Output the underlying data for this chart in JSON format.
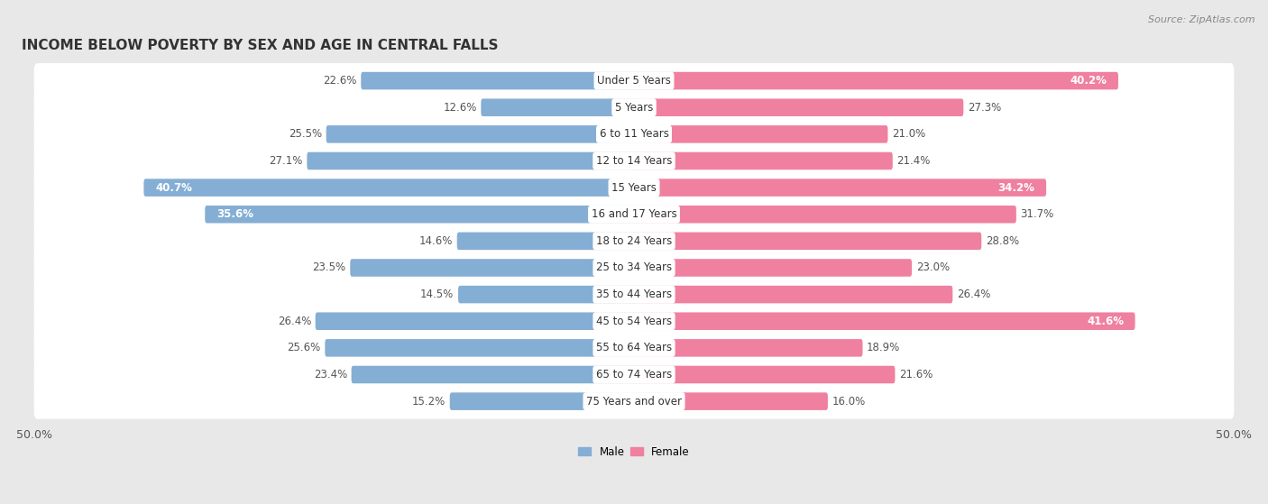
{
  "title": "INCOME BELOW POVERTY BY SEX AND AGE IN CENTRAL FALLS",
  "source": "Source: ZipAtlas.com",
  "categories": [
    "Under 5 Years",
    "5 Years",
    "6 to 11 Years",
    "12 to 14 Years",
    "15 Years",
    "16 and 17 Years",
    "18 to 24 Years",
    "25 to 34 Years",
    "35 to 44 Years",
    "45 to 54 Years",
    "55 to 64 Years",
    "65 to 74 Years",
    "75 Years and over"
  ],
  "male": [
    22.6,
    12.6,
    25.5,
    27.1,
    40.7,
    35.6,
    14.6,
    23.5,
    14.5,
    26.4,
    25.6,
    23.4,
    15.2
  ],
  "female": [
    40.2,
    27.3,
    21.0,
    21.4,
    34.2,
    31.7,
    28.8,
    23.0,
    26.4,
    41.6,
    18.9,
    21.6,
    16.0
  ],
  "male_color": "#85aed4",
  "female_color": "#f080a0",
  "male_label": "Male",
  "female_label": "Female",
  "axis_limit": 50.0,
  "background_color": "#e8e8e8",
  "row_bg_color": "#ffffff",
  "title_fontsize": 11,
  "label_fontsize": 8.5,
  "tick_fontsize": 9,
  "source_fontsize": 8
}
